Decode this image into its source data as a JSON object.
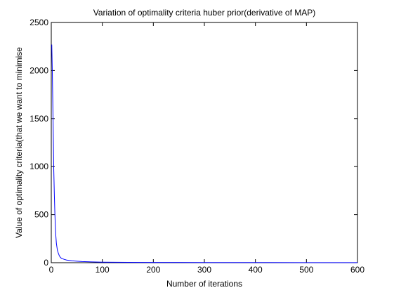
{
  "chart_data": {
    "type": "line",
    "title": "Variation of optimality criteria huber prior(derivative of MAP)",
    "xlabel": "Number of iterations",
    "ylabel": "Value of optimality criteria(that we want to minimise",
    "xlim": [
      0,
      600
    ],
    "ylim": [
      0,
      2500
    ],
    "xticks": [
      "0",
      "100",
      "200",
      "300",
      "400",
      "500",
      "600"
    ],
    "yticks": [
      "0",
      "500",
      "1000",
      "1500",
      "2000",
      "2500"
    ],
    "grid": false,
    "legend": "none",
    "line_color": "#0000ff",
    "series": [
      {
        "x": [
          1,
          2,
          3,
          4,
          5,
          6,
          7,
          8,
          9,
          10,
          12,
          14,
          16,
          18,
          20,
          25,
          30,
          40,
          50,
          60,
          80,
          100,
          150,
          200,
          300,
          400,
          500,
          600
        ],
        "y": [
          2270,
          1980,
          1650,
          1300,
          950,
          700,
          520,
          380,
          280,
          200,
          130,
          95,
          70,
          55,
          45,
          35,
          28,
          20,
          15,
          12,
          8,
          6,
          4,
          3,
          2,
          2,
          1,
          1
        ]
      }
    ]
  }
}
